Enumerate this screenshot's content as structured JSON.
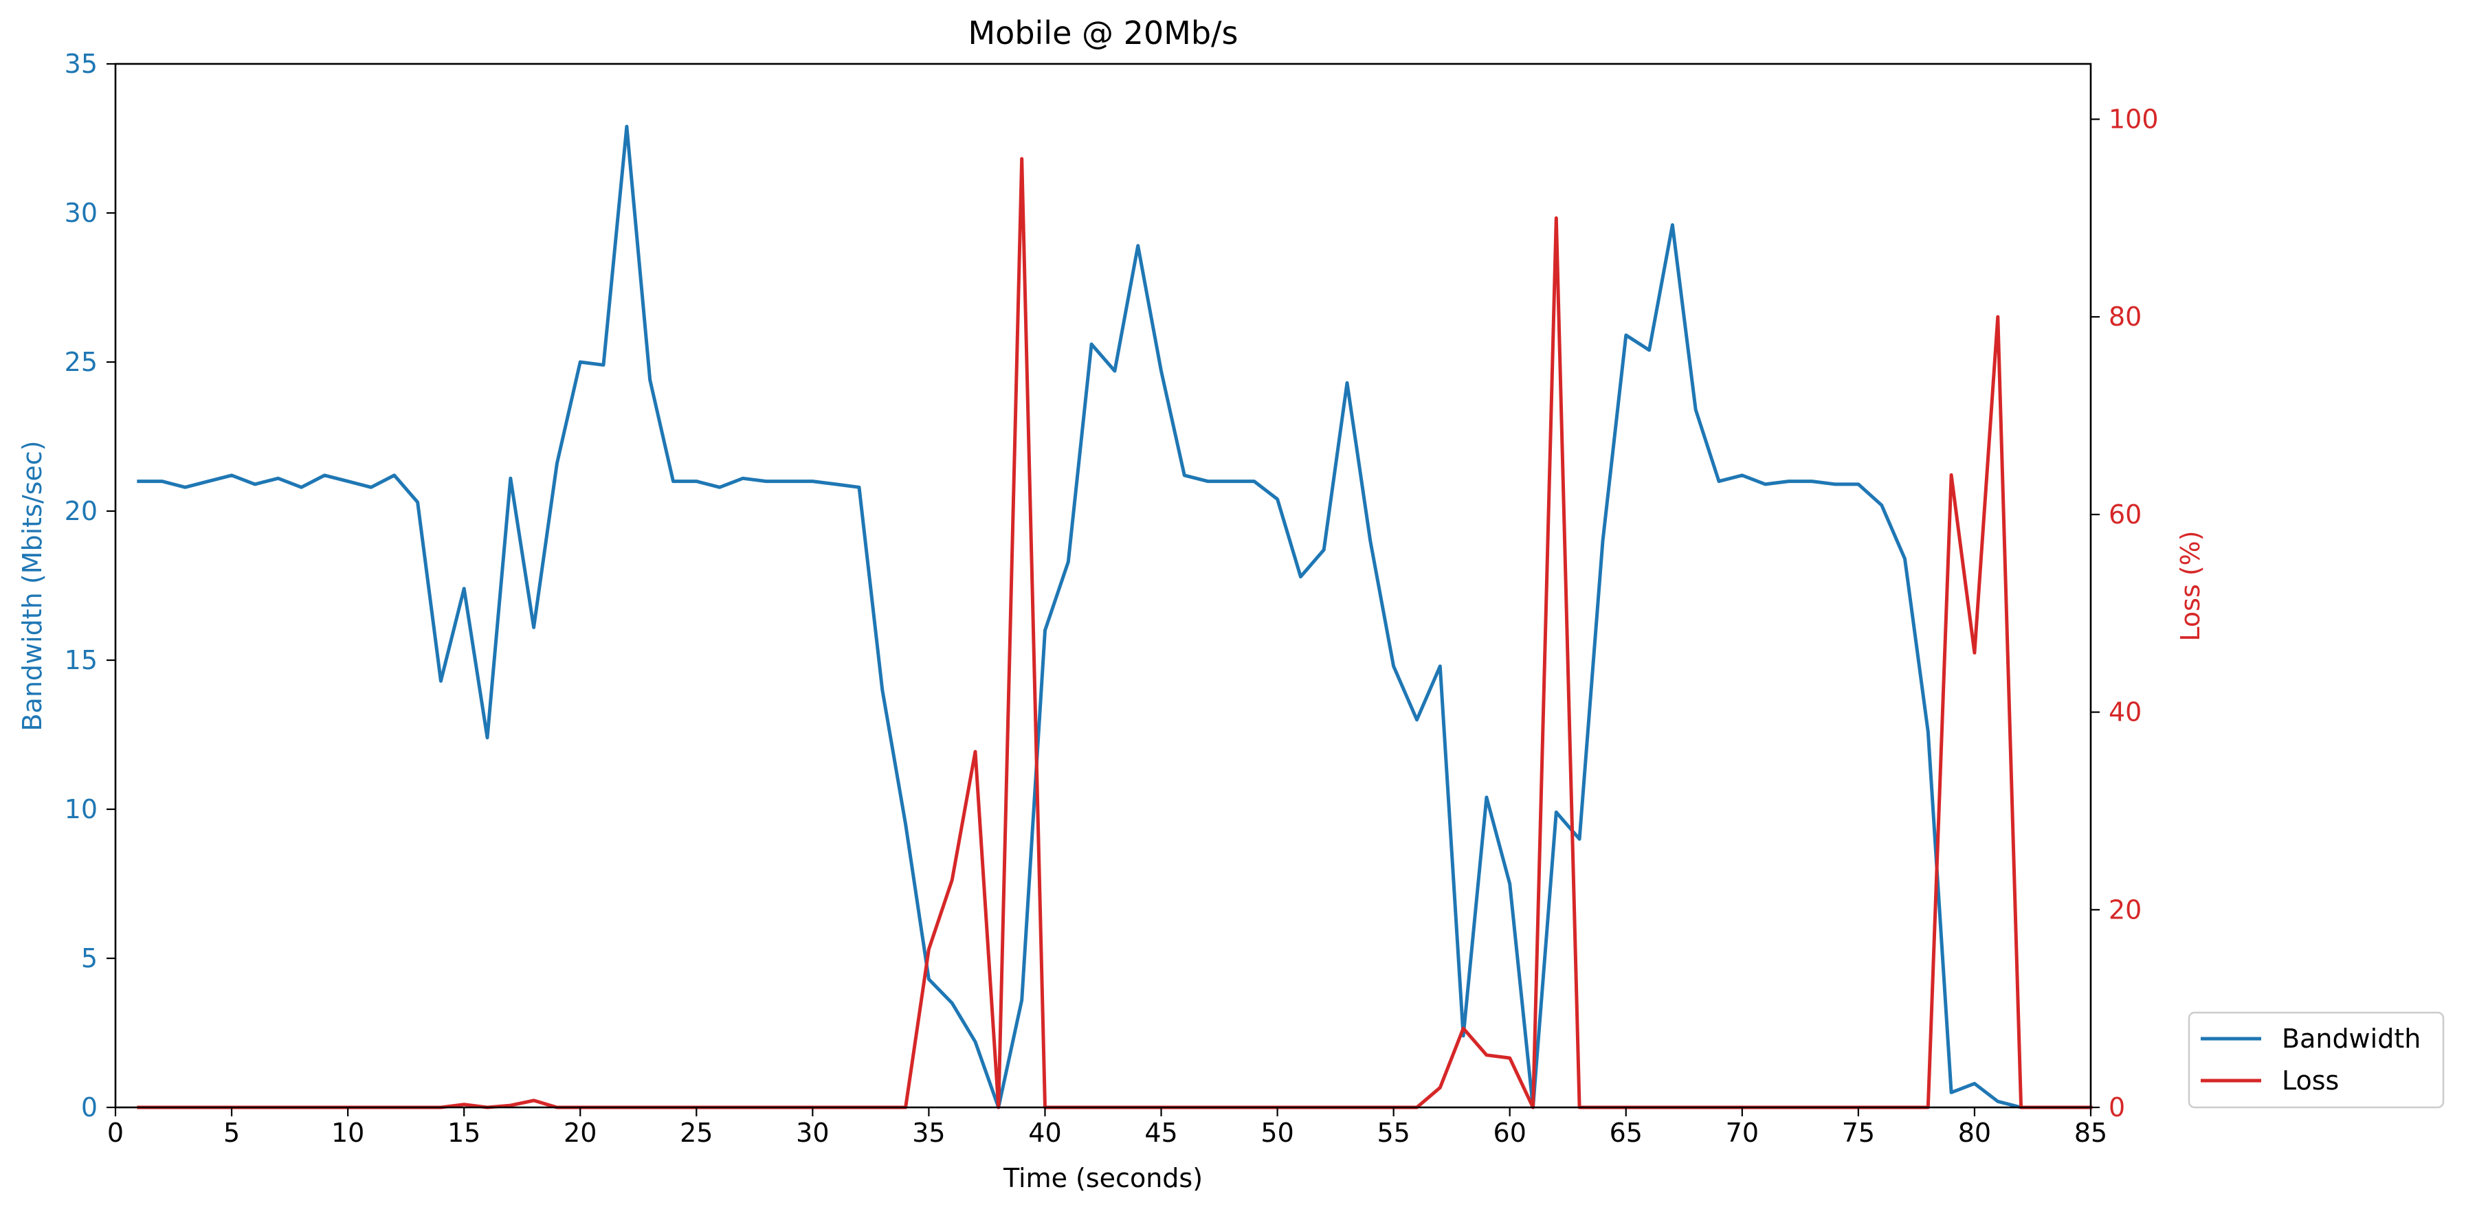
{
  "chart_data": {
    "type": "line",
    "title": "Mobile @ 20Mb/s",
    "xlabel": "Time (seconds)",
    "ylabel": "Bandwidth (Mbits/sec)",
    "ylabel_right": "Loss (%)",
    "xlim": [
      0,
      85
    ],
    "ylim": [
      0,
      35
    ],
    "ylim_right": [
      0,
      105.6
    ],
    "x_ticks": [
      0,
      5,
      10,
      15,
      20,
      25,
      30,
      35,
      40,
      45,
      50,
      55,
      60,
      65,
      70,
      75,
      80,
      85
    ],
    "y_ticks": [
      0,
      5,
      10,
      15,
      20,
      25,
      30,
      35
    ],
    "y_ticks_right": [
      0,
      20,
      40,
      60,
      80,
      100
    ],
    "grid": false,
    "legend_position": "outside bottom-right",
    "x": [
      1,
      2,
      3,
      4,
      5,
      6,
      7,
      8,
      9,
      10,
      11,
      12,
      13,
      14,
      15,
      16,
      17,
      18,
      19,
      20,
      21,
      22,
      23,
      24,
      25,
      26,
      27,
      28,
      29,
      30,
      31,
      32,
      33,
      34,
      35,
      36,
      37,
      38,
      39,
      40,
      41,
      42,
      43,
      44,
      45,
      46,
      47,
      48,
      49,
      50,
      51,
      52,
      53,
      54,
      55,
      56,
      57,
      58,
      59,
      60,
      61,
      62,
      63,
      64,
      65,
      66,
      67,
      68,
      69,
      70,
      71,
      72,
      73,
      74,
      75,
      76,
      77,
      78,
      79,
      80,
      81,
      82,
      83,
      84,
      85
    ],
    "series": [
      {
        "name": "Bandwidth",
        "axis": "left",
        "color": "#1f77b4",
        "values": [
          21.0,
          21.0,
          20.8,
          21.0,
          21.2,
          20.9,
          21.1,
          20.8,
          21.2,
          21.0,
          20.8,
          21.2,
          20.3,
          14.3,
          17.4,
          12.4,
          21.1,
          16.1,
          21.6,
          25.0,
          24.9,
          32.9,
          24.4,
          21.0,
          21.0,
          20.8,
          21.1,
          21.0,
          21.0,
          21.0,
          20.9,
          20.8,
          14.0,
          9.5,
          4.3,
          3.5,
          2.2,
          0.0,
          3.6,
          16.0,
          18.3,
          25.6,
          24.7,
          28.9,
          24.7,
          21.2,
          21.0,
          21.0,
          21.0,
          20.4,
          17.8,
          18.7,
          24.3,
          19.0,
          14.8,
          13.0,
          14.8,
          2.4,
          10.4,
          7.5,
          0.0,
          9.9,
          9.0,
          19.0,
          25.9,
          25.4,
          29.6,
          23.4,
          21.0,
          21.2,
          20.9,
          21.0,
          21.0,
          20.9,
          20.9,
          20.2,
          18.4,
          12.6,
          0.5,
          0.8,
          0.2,
          0.0,
          0.0,
          0.0,
          0.0
        ]
      },
      {
        "name": "Loss",
        "axis": "right",
        "color": "#d62728",
        "values": [
          0,
          0,
          0,
          0,
          0,
          0,
          0,
          0,
          0,
          0,
          0,
          0,
          0,
          0,
          0.3,
          0,
          0.2,
          0.7,
          0,
          0,
          0,
          0,
          0,
          0,
          0,
          0,
          0,
          0,
          0,
          0,
          0,
          0,
          0,
          0,
          16,
          23,
          36,
          0,
          96,
          0,
          0,
          0,
          0,
          0,
          0,
          0,
          0,
          0,
          0,
          0,
          0,
          0,
          0,
          0,
          0,
          0,
          2,
          8,
          5.3,
          5,
          0,
          90,
          0,
          0,
          0,
          0,
          0,
          0,
          0,
          0,
          0,
          0,
          0,
          0,
          0,
          0,
          0,
          0,
          64,
          46,
          80,
          0,
          0,
          0,
          0
        ]
      }
    ]
  }
}
